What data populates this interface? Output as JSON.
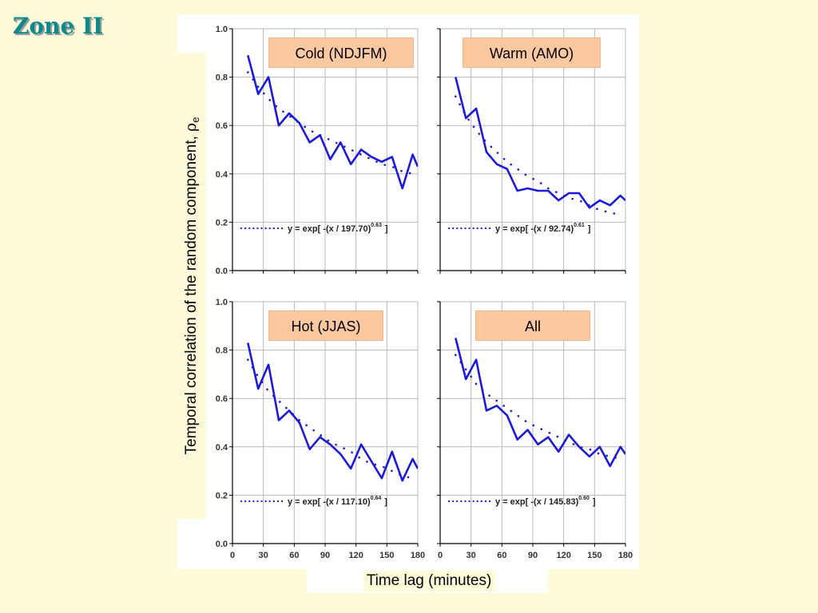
{
  "slide": {
    "title": "Zone II"
  },
  "figure": {
    "ylabel_main": "Temporal correlation of the random component, ",
    "ylabel_symbol": "ρ",
    "ylabel_sub": "e",
    "xlabel": "Time lag (minutes)"
  },
  "chart_data": [
    {
      "type": "line",
      "panel_label": "Cold (NDJFM)",
      "xlim": [
        0,
        180
      ],
      "ylim": [
        0.0,
        1.0
      ],
      "x_ticks": [
        0,
        30,
        60,
        90,
        120,
        150,
        180
      ],
      "y_ticks": [
        "0.0",
        "0.2",
        "0.4",
        "0.6",
        "0.8",
        "1.0"
      ],
      "legend": "y = exp[ -(x / 197.70)",
      "legend_exp": "0.63",
      "legend_close": "]",
      "series": [
        {
          "style": "solid",
          "x": [
            15,
            25,
            35,
            45,
            55,
            65,
            75,
            85,
            95,
            105,
            115,
            125,
            135,
            145,
            155,
            165,
            175,
            180
          ],
          "y": [
            0.89,
            0.73,
            0.8,
            0.6,
            0.65,
            0.61,
            0.53,
            0.56,
            0.46,
            0.53,
            0.44,
            0.5,
            0.47,
            0.45,
            0.47,
            0.34,
            0.48,
            0.43
          ]
        },
        {
          "style": "dotted",
          "x": [
            15,
            25,
            35,
            45,
            55,
            65,
            75,
            85,
            95,
            105,
            115,
            125,
            135,
            145,
            155,
            165,
            175
          ],
          "y": [
            0.82,
            0.76,
            0.71,
            0.67,
            0.64,
            0.61,
            0.58,
            0.56,
            0.54,
            0.52,
            0.5,
            0.48,
            0.46,
            0.44,
            0.43,
            0.41,
            0.4
          ]
        }
      ]
    },
    {
      "type": "line",
      "panel_label": "Warm (AMO)",
      "xlim": [
        0,
        180
      ],
      "ylim": [
        0.0,
        1.0
      ],
      "x_ticks": [
        0,
        30,
        60,
        90,
        120,
        150,
        180
      ],
      "y_ticks": [
        "0.0",
        "0.2",
        "0.4",
        "0.6",
        "0.8",
        "1.0"
      ],
      "legend": "y = exp[ -(x / 92.74)",
      "legend_exp": "0.61",
      "legend_close": "]",
      "series": [
        {
          "style": "solid",
          "x": [
            15,
            25,
            35,
            45,
            55,
            65,
            75,
            85,
            95,
            105,
            115,
            125,
            135,
            145,
            155,
            165,
            175,
            180
          ],
          "y": [
            0.8,
            0.63,
            0.67,
            0.49,
            0.44,
            0.42,
            0.33,
            0.34,
            0.33,
            0.33,
            0.29,
            0.32,
            0.32,
            0.26,
            0.29,
            0.27,
            0.31,
            0.29
          ]
        },
        {
          "style": "dotted",
          "x": [
            15,
            25,
            35,
            45,
            55,
            65,
            75,
            85,
            95,
            105,
            115,
            125,
            135,
            145,
            155,
            165,
            175
          ],
          "y": [
            0.72,
            0.64,
            0.58,
            0.53,
            0.49,
            0.45,
            0.42,
            0.39,
            0.37,
            0.34,
            0.32,
            0.3,
            0.29,
            0.27,
            0.25,
            0.24,
            0.23
          ]
        }
      ]
    },
    {
      "type": "line",
      "panel_label": "Hot (JJAS)",
      "xlim": [
        0,
        180
      ],
      "ylim": [
        0.0,
        1.0
      ],
      "x_ticks": [
        0,
        30,
        60,
        90,
        120,
        150,
        180
      ],
      "y_ticks": [
        "0.0",
        "0.2",
        "0.4",
        "0.6",
        "0.8",
        "1.0"
      ],
      "legend": "y = exp[ -(x / 117.10)",
      "legend_exp": "0.64",
      "legend_close": "]",
      "series": [
        {
          "style": "solid",
          "x": [
            15,
            25,
            35,
            45,
            55,
            65,
            75,
            85,
            95,
            105,
            115,
            125,
            135,
            145,
            155,
            165,
            175,
            180
          ],
          "y": [
            0.83,
            0.64,
            0.74,
            0.51,
            0.55,
            0.5,
            0.39,
            0.44,
            0.41,
            0.37,
            0.31,
            0.41,
            0.34,
            0.27,
            0.38,
            0.26,
            0.35,
            0.31
          ]
        },
        {
          "style": "dotted",
          "x": [
            15,
            25,
            35,
            45,
            55,
            65,
            75,
            85,
            95,
            105,
            115,
            125,
            135,
            145,
            155,
            165,
            175
          ],
          "y": [
            0.76,
            0.69,
            0.63,
            0.59,
            0.55,
            0.51,
            0.48,
            0.45,
            0.42,
            0.4,
            0.38,
            0.35,
            0.33,
            0.32,
            0.3,
            0.28,
            0.27
          ]
        }
      ]
    },
    {
      "type": "line",
      "panel_label": "All",
      "xlim": [
        0,
        180
      ],
      "ylim": [
        0.0,
        1.0
      ],
      "x_ticks": [
        0,
        30,
        60,
        90,
        120,
        150,
        180
      ],
      "y_ticks": [
        "0.0",
        "0.2",
        "0.4",
        "0.6",
        "0.8",
        "1.0"
      ],
      "legend": "y = exp[ -(x / 145.83)",
      "legend_exp": "0.60",
      "legend_close": "]",
      "series": [
        {
          "style": "solid",
          "x": [
            15,
            25,
            35,
            45,
            55,
            65,
            75,
            85,
            95,
            105,
            115,
            125,
            135,
            145,
            155,
            165,
            175,
            180
          ],
          "y": [
            0.85,
            0.68,
            0.76,
            0.55,
            0.57,
            0.53,
            0.43,
            0.47,
            0.41,
            0.44,
            0.38,
            0.45,
            0.4,
            0.36,
            0.4,
            0.32,
            0.4,
            0.37
          ]
        },
        {
          "style": "dotted",
          "x": [
            15,
            25,
            35,
            45,
            55,
            65,
            75,
            85,
            95,
            105,
            115,
            125,
            135,
            145,
            155,
            165,
            175
          ],
          "y": [
            0.78,
            0.72,
            0.66,
            0.62,
            0.59,
            0.56,
            0.53,
            0.5,
            0.48,
            0.46,
            0.44,
            0.42,
            0.4,
            0.39,
            0.37,
            0.36,
            0.35
          ]
        }
      ]
    }
  ]
}
